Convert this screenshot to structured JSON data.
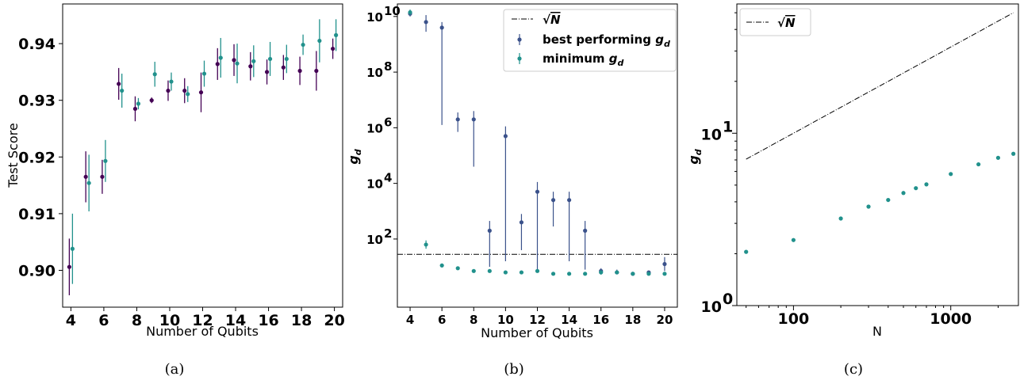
{
  "colors": {
    "purple": "#440154",
    "teal": "#21918c",
    "navy": "#3b528b"
  },
  "chart_data": [
    {
      "panel": "a",
      "caption": "(a)",
      "type": "scatter",
      "xlabel": "Number of Qubits",
      "ylabel": "Test Score",
      "xlim": [
        3.5,
        20.5
      ],
      "ylim": [
        0.8935,
        0.947
      ],
      "xticks": [
        4,
        6,
        8,
        10,
        12,
        14,
        16,
        18,
        20
      ],
      "yticks": [
        0.9,
        0.91,
        0.92,
        0.93,
        0.94
      ],
      "ytick_labels": [
        "0.90",
        "0.91",
        "0.92",
        "0.93",
        "0.94"
      ],
      "error_bars": true,
      "series": [
        {
          "color": "#440154",
          "x": [
            4,
            5,
            6,
            7,
            8,
            9,
            10,
            11,
            12,
            13,
            14,
            15,
            16,
            17,
            18,
            19,
            20
          ],
          "y": [
            0.9006,
            0.9165,
            0.9165,
            0.9329,
            0.9285,
            0.93,
            0.9317,
            0.9317,
            0.9314,
            0.9364,
            0.9371,
            0.936,
            0.935,
            0.9358,
            0.9352,
            0.9352,
            0.9391
          ],
          "err": [
            0.005,
            0.0045,
            0.003,
            0.0028,
            0.0022,
            0.0005,
            0.0018,
            0.0022,
            0.0035,
            0.0028,
            0.0028,
            0.0025,
            0.0022,
            0.0022,
            0.0025,
            0.0035,
            0.0018
          ]
        },
        {
          "color": "#21918c",
          "x": [
            4,
            5,
            6,
            7,
            8,
            9,
            10,
            11,
            12,
            13,
            14,
            15,
            16,
            17,
            18,
            19,
            20
          ],
          "y": [
            0.9038,
            0.9154,
            0.9193,
            0.9317,
            0.9294,
            0.9346,
            0.9333,
            0.9311,
            0.9347,
            0.9375,
            0.9365,
            0.9369,
            0.9373,
            0.9373,
            0.9398,
            0.9405,
            0.9415
          ],
          "err": [
            0.0062,
            0.005,
            0.0037,
            0.003,
            0.001,
            0.0022,
            0.0016,
            0.0014,
            0.0023,
            0.0035,
            0.0035,
            0.0028,
            0.003,
            0.0025,
            0.0018,
            0.0038,
            0.0028
          ]
        }
      ]
    },
    {
      "panel": "b",
      "caption": "(b)",
      "type": "scatter",
      "xlabel": "Number of Qubits",
      "ylabel": "g_d",
      "yscale": "log",
      "xlim": [
        3.2,
        20.8
      ],
      "ylim_log10": [
        -0.45,
        10.45
      ],
      "xticks": [
        4,
        6,
        8,
        10,
        12,
        14,
        16,
        18,
        20
      ],
      "yticks_log10": [
        2,
        4,
        6,
        8,
        10
      ],
      "error_bars": true,
      "sqrtN_log10": 1.45,
      "legend": {
        "position": "top-right",
        "entries": [
          "√N",
          "best performing g_d",
          "minimum g_d"
        ]
      },
      "series": [
        {
          "name": "best performing g_d",
          "color": "#3b528b",
          "x": [
            4,
            5,
            6,
            7,
            8,
            9,
            10,
            11,
            12,
            13,
            14,
            15,
            16,
            17,
            18,
            19,
            20
          ],
          "log10_y": [
            10.1,
            9.8,
            9.6,
            6.3,
            6.3,
            2.3,
            5.7,
            2.6,
            3.7,
            3.4,
            3.4,
            2.3,
            0.85,
            0.8,
            0.75,
            0.8,
            1.1
          ],
          "log10_lo": [
            10.0,
            9.45,
            6.1,
            5.85,
            4.6,
            1.0,
            1.2,
            1.6,
            0.9,
            2.45,
            1.2,
            0.9,
            0.75,
            0.75,
            0.7,
            0.75,
            0.85
          ],
          "log10_hi": [
            10.2,
            10.05,
            9.8,
            6.55,
            6.6,
            2.65,
            6.05,
            2.9,
            4.05,
            3.7,
            3.7,
            2.65,
            0.95,
            0.9,
            0.8,
            0.85,
            1.35
          ]
        },
        {
          "name": "minimum g_d",
          "color": "#21918c",
          "x": [
            4,
            5,
            6,
            7,
            8,
            9,
            10,
            11,
            12,
            13,
            14,
            15,
            16,
            17,
            18,
            19,
            20
          ],
          "log10_y": [
            10.15,
            1.8,
            1.05,
            0.95,
            0.85,
            0.85,
            0.8,
            0.8,
            0.85,
            0.75,
            0.75,
            0.75,
            0.8,
            0.8,
            0.75,
            0.75,
            0.75
          ],
          "log10_lo": [
            10.05,
            1.65,
            0.98,
            0.9,
            0.8,
            0.8,
            0.75,
            0.75,
            0.8,
            0.7,
            0.7,
            0.7,
            0.72,
            0.75,
            0.7,
            0.7,
            0.7
          ],
          "log10_hi": [
            10.25,
            1.95,
            1.12,
            1.0,
            0.9,
            0.9,
            0.85,
            0.85,
            0.9,
            0.8,
            0.8,
            0.8,
            0.88,
            0.85,
            0.8,
            0.8,
            0.8
          ]
        }
      ]
    },
    {
      "panel": "c",
      "caption": "(c)",
      "type": "scatter",
      "xlabel": "N",
      "ylabel": "g_d",
      "xscale": "log",
      "yscale": "log",
      "xlim_log10": [
        1.64,
        3.43
      ],
      "ylim_log10": [
        0.0,
        1.75
      ],
      "xticks": [
        100,
        1000
      ],
      "yticks": [
        1,
        10
      ],
      "ytick_labels": [
        "10^0",
        "10^1"
      ],
      "legend": {
        "position": "top-left",
        "entries": [
          "√N"
        ]
      },
      "sqrtN_line": {
        "x": [
          50,
          2500
        ]
      },
      "series": [
        {
          "color": "#21918c",
          "x": [
            50,
            100,
            200,
            300,
            400,
            500,
            600,
            700,
            1000,
            1500,
            2000,
            2500
          ],
          "y": [
            2.05,
            2.4,
            3.2,
            3.75,
            4.1,
            4.5,
            4.8,
            5.05,
            5.8,
            6.6,
            7.2,
            7.6
          ]
        }
      ]
    }
  ]
}
